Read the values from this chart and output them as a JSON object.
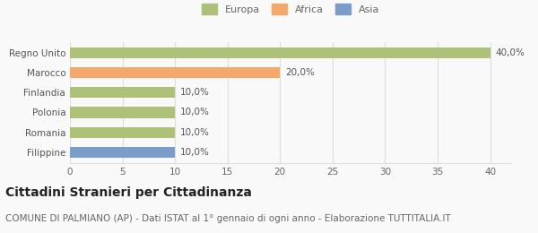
{
  "categories": [
    "Filippine",
    "Romania",
    "Polonia",
    "Finlandia",
    "Marocco",
    "Regno Unito"
  ],
  "values": [
    10.0,
    10.0,
    10.0,
    10.0,
    20.0,
    40.0
  ],
  "colors": [
    "#7b9dc9",
    "#adc178",
    "#adc178",
    "#adc178",
    "#f4a86a",
    "#adc178"
  ],
  "bar_labels": [
    "10,0%",
    "10,0%",
    "10,0%",
    "10,0%",
    "20,0%",
    "40,0%"
  ],
  "xlim": [
    0,
    42
  ],
  "xticks": [
    0,
    5,
    10,
    15,
    20,
    25,
    30,
    35,
    40
  ],
  "legend": [
    {
      "label": "Europa",
      "color": "#adc178"
    },
    {
      "label": "Africa",
      "color": "#f4a86a"
    },
    {
      "label": "Asia",
      "color": "#7b9dc9"
    }
  ],
  "title": "Cittadini Stranieri per Cittadinanza",
  "subtitle": "COMUNE DI PALMIANO (AP) - Dati ISTAT al 1° gennaio di ogni anno - Elaborazione TUTTITALIA.IT",
  "title_fontsize": 10,
  "subtitle_fontsize": 7.5,
  "label_fontsize": 7.5,
  "tick_fontsize": 7.5,
  "background_color": "#f9f9f9",
  "bar_height": 0.55,
  "grid_color": "#dddddd"
}
